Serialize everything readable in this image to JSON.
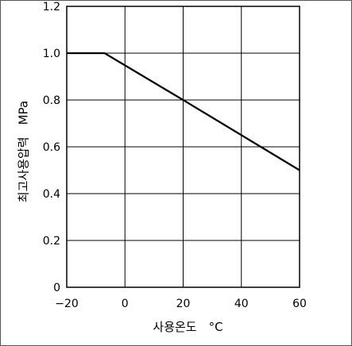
{
  "chart_data": {
    "type": "line",
    "title": "",
    "xlabel": "사용온도　°C",
    "ylabel": "최고사용압력　MPa",
    "xlim": [
      -20,
      60
    ],
    "ylim": [
      0,
      1.2
    ],
    "x_ticks": [
      "−20",
      "0",
      "20",
      "40",
      "60"
    ],
    "y_ticks": [
      "0",
      "0.2",
      "0.4",
      "0.6",
      "0.8",
      "1.0",
      "1.2"
    ],
    "grid": true,
    "series": [
      {
        "x": [
          -20,
          -7,
          20,
          60
        ],
        "y": [
          1.0,
          1.0,
          0.8,
          0.5
        ]
      }
    ]
  }
}
